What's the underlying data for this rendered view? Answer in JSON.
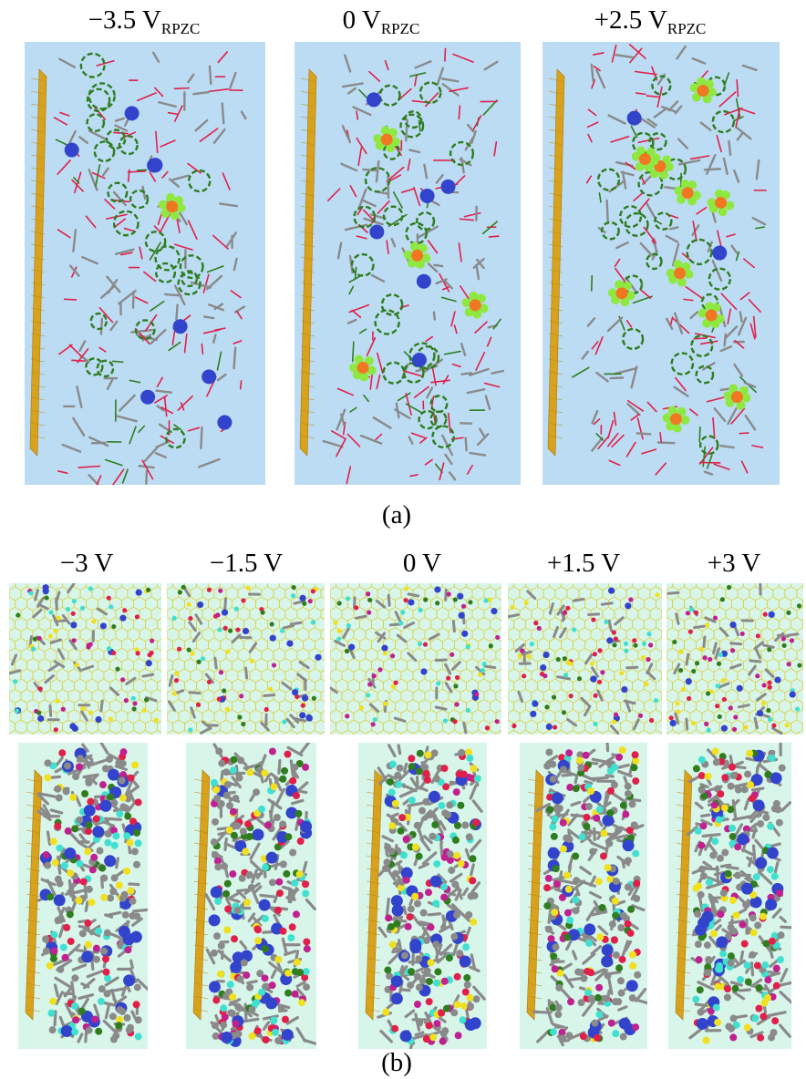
{
  "part_a": {
    "labels": [
      {
        "main": "−3.5 V",
        "sub": "RPZC"
      },
      {
        "main": "0 V",
        "sub": "RPZC"
      },
      {
        "main": "+2.5 V",
        "sub": "RPZC"
      }
    ],
    "caption": "(a)"
  },
  "part_b": {
    "labels": [
      "−3 V",
      "−1.5 V",
      "0 V",
      "+1.5 V",
      "+3 V"
    ],
    "caption": "(b)"
  },
  "colors": {
    "panel_a_bg": "#bcdcf4",
    "panel_b_bg": "#d8f5ea",
    "electrode": "#d9a21c",
    "cation": "#3344cc",
    "anion_center": "#f07820",
    "fluorine": "#8fe840",
    "carbon": "#8a8a8a",
    "oxygen": "#e0204a",
    "ring": "#2f7d1f",
    "sulfur": "#f0e020",
    "nitrogen": "#3030c0",
    "cyan": "#40e0d0",
    "graphene": "#d8d040"
  }
}
